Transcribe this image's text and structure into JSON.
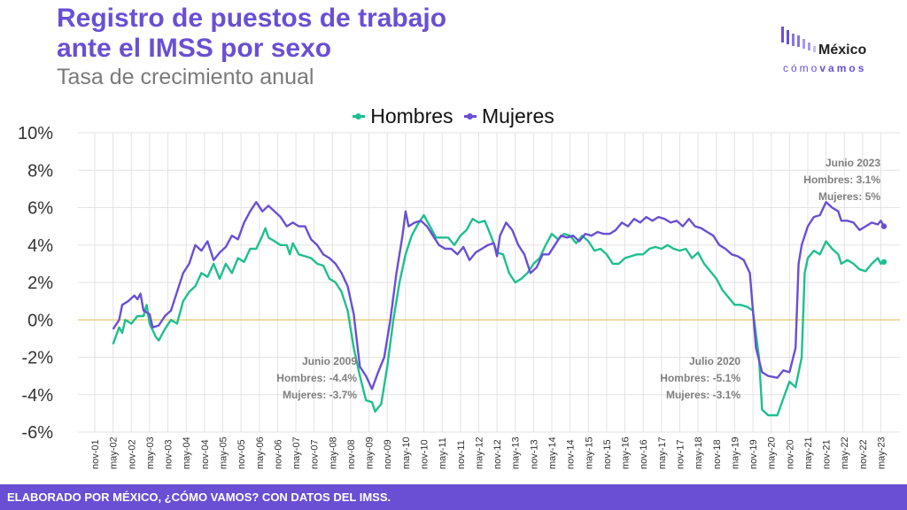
{
  "header": {
    "title_line1": "Registro de puestos de trabajo",
    "title_line2": "ante el IMSS por sexo",
    "subtitle": "Tasa de crecimiento anual"
  },
  "logo": {
    "name": "México",
    "tagline_light": "cómo",
    "tagline_bold": "vamos"
  },
  "footer": {
    "text": "ELABORADO POR MÉXICO, ¿CÓMO VAMOS? CON DATOS DEL IMSS."
  },
  "colors": {
    "hombres": "#1fbf8f",
    "mujeres": "#6a4fd4",
    "zero_line": "#e8c86a",
    "grid": "#e3e3e3",
    "brand": "#6a4fd4"
  },
  "chart_data": {
    "type": "line",
    "title": "Registro de puestos de trabajo ante el IMSS por sexo",
    "subtitle": "Tasa de crecimiento anual",
    "ylim": [
      -6,
      10
    ],
    "yticks": [
      -6,
      -4,
      -2,
      0,
      2,
      4,
      6,
      8,
      10
    ],
    "ytick_labels": [
      "-6%",
      "-4%",
      "-2%",
      "0%",
      "2%",
      "4%",
      "6%",
      "8%",
      "10%"
    ],
    "xtick_labels": [
      "nov-01",
      "may-02",
      "nov-02",
      "may-03",
      "nov-03",
      "may-04",
      "nov-04",
      "may-05",
      "nov-05",
      "may-06",
      "nov-06",
      "may-07",
      "nov-07",
      "may-08",
      "nov-08",
      "may-09",
      "nov-09",
      "may-10",
      "nov-10",
      "may-11",
      "nov-11",
      "may-12",
      "nov-12",
      "may-13",
      "nov-13",
      "may-14",
      "nov-14",
      "may-15",
      "nov-15",
      "may-16",
      "nov-16",
      "may-17",
      "nov-17",
      "may-18",
      "nov-18",
      "may-19",
      "nov-19",
      "may-20",
      "nov-20",
      "may-21",
      "nov-21",
      "may-22",
      "nov-22",
      "may-23"
    ],
    "legend_position": "top-center",
    "grid": true,
    "series": [
      {
        "name": "Hombres",
        "color": "#1fbf8f",
        "points": [
          [
            "may-02",
            -1.3
          ],
          [
            "jul-02",
            -0.4
          ],
          [
            "ago-02",
            -0.7
          ],
          [
            "sep-02",
            0.0
          ],
          [
            "nov-02",
            -0.2
          ],
          [
            "ene-03",
            0.2
          ],
          [
            "mar-03",
            0.2
          ],
          [
            "abr-03",
            0.8
          ],
          [
            "may-03",
            -0.2
          ],
          [
            "jul-03",
            -0.9
          ],
          [
            "ago-03",
            -1.1
          ],
          [
            "oct-03",
            -0.5
          ],
          [
            "dic-03",
            0.0
          ],
          [
            "feb-04",
            -0.2
          ],
          [
            "abr-04",
            1.0
          ],
          [
            "jun-04",
            1.5
          ],
          [
            "ago-04",
            1.8
          ],
          [
            "oct-04",
            2.5
          ],
          [
            "dic-04",
            2.3
          ],
          [
            "feb-05",
            3.0
          ],
          [
            "abr-05",
            2.2
          ],
          [
            "jun-05",
            3.0
          ],
          [
            "ago-05",
            2.5
          ],
          [
            "oct-05",
            3.3
          ],
          [
            "dic-05",
            3.1
          ],
          [
            "feb-06",
            3.8
          ],
          [
            "abr-06",
            3.8
          ],
          [
            "jun-06",
            4.5
          ],
          [
            "jul-06",
            4.9
          ],
          [
            "ago-06",
            4.4
          ],
          [
            "oct-06",
            4.2
          ],
          [
            "dic-06",
            4.0
          ],
          [
            "feb-07",
            4.0
          ],
          [
            "mar-07",
            3.5
          ],
          [
            "abr-07",
            4.1
          ],
          [
            "jun-07",
            3.5
          ],
          [
            "ago-07",
            3.4
          ],
          [
            "oct-07",
            3.3
          ],
          [
            "dic-07",
            3.0
          ],
          [
            "feb-08",
            2.9
          ],
          [
            "abr-08",
            2.2
          ],
          [
            "jun-08",
            2.0
          ],
          [
            "ago-08",
            1.5
          ],
          [
            "oct-08",
            0.5
          ],
          [
            "dic-08",
            -1.5
          ],
          [
            "feb-09",
            -3.0
          ],
          [
            "abr-09",
            -4.3
          ],
          [
            "jun-09",
            -4.4
          ],
          [
            "jul-09",
            -4.9
          ],
          [
            "sep-09",
            -4.5
          ],
          [
            "nov-09",
            -2.5
          ],
          [
            "ene-10",
            0.0
          ],
          [
            "mar-10",
            2.0
          ],
          [
            "may-10",
            3.5
          ],
          [
            "jul-10",
            4.5
          ],
          [
            "sep-10",
            5.1
          ],
          [
            "nov-10",
            5.6
          ],
          [
            "ene-11",
            5.0
          ],
          [
            "mar-11",
            4.4
          ],
          [
            "may-11",
            4.4
          ],
          [
            "jul-11",
            4.4
          ],
          [
            "sep-11",
            4.0
          ],
          [
            "nov-11",
            4.5
          ],
          [
            "ene-12",
            4.8
          ],
          [
            "mar-12",
            5.4
          ],
          [
            "may-12",
            5.2
          ],
          [
            "jul-12",
            5.3
          ],
          [
            "sep-12",
            4.5
          ],
          [
            "nov-12",
            3.6
          ],
          [
            "ene-13",
            3.5
          ],
          [
            "mar-13",
            2.5
          ],
          [
            "may-13",
            2.0
          ],
          [
            "jul-13",
            2.2
          ],
          [
            "sep-13",
            2.5
          ],
          [
            "nov-13",
            3.0
          ],
          [
            "ene-14",
            3.3
          ],
          [
            "mar-14",
            4.0
          ],
          [
            "may-14",
            4.6
          ],
          [
            "jul-14",
            4.3
          ],
          [
            "sep-14",
            4.6
          ],
          [
            "nov-14",
            4.5
          ],
          [
            "ene-15",
            4.1
          ],
          [
            "mar-15",
            4.5
          ],
          [
            "may-15",
            4.2
          ],
          [
            "jul-15",
            3.7
          ],
          [
            "sep-15",
            3.8
          ],
          [
            "nov-15",
            3.5
          ],
          [
            "ene-16",
            3.0
          ],
          [
            "mar-16",
            3.0
          ],
          [
            "may-16",
            3.3
          ],
          [
            "jul-16",
            3.4
          ],
          [
            "sep-16",
            3.5
          ],
          [
            "nov-16",
            3.5
          ],
          [
            "ene-17",
            3.8
          ],
          [
            "mar-17",
            3.9
          ],
          [
            "may-17",
            3.8
          ],
          [
            "jul-17",
            4.0
          ],
          [
            "sep-17",
            3.8
          ],
          [
            "nov-17",
            3.7
          ],
          [
            "ene-18",
            3.8
          ],
          [
            "mar-18",
            3.3
          ],
          [
            "may-18",
            3.6
          ],
          [
            "jul-18",
            3.0
          ],
          [
            "sep-18",
            2.6
          ],
          [
            "nov-18",
            2.2
          ],
          [
            "ene-19",
            1.6
          ],
          [
            "mar-19",
            1.2
          ],
          [
            "may-19",
            0.8
          ],
          [
            "jul-19",
            0.8
          ],
          [
            "sep-19",
            0.7
          ],
          [
            "nov-19",
            0.5
          ],
          [
            "ene-20",
            -2.0
          ],
          [
            "feb-20",
            -4.8
          ],
          [
            "abr-20",
            -5.1
          ],
          [
            "jul-20",
            -5.1
          ],
          [
            "sep-20",
            -4.2
          ],
          [
            "nov-20",
            -3.3
          ],
          [
            "ene-21",
            -3.6
          ],
          [
            "mar-21",
            -2.0
          ],
          [
            "abr-21",
            2.5
          ],
          [
            "may-21",
            3.3
          ],
          [
            "jul-21",
            3.7
          ],
          [
            "sep-21",
            3.5
          ],
          [
            "nov-21",
            4.2
          ],
          [
            "ene-22",
            3.8
          ],
          [
            "mar-22",
            3.5
          ],
          [
            "abr-22",
            3.0
          ],
          [
            "jun-22",
            3.2
          ],
          [
            "ago-22",
            3.0
          ],
          [
            "oct-22",
            2.7
          ],
          [
            "dic-22",
            2.6
          ],
          [
            "feb-23",
            3.0
          ],
          [
            "abr-23",
            3.3
          ],
          [
            "may-23",
            3.0
          ],
          [
            "jun-23",
            3.1
          ]
        ]
      },
      {
        "name": "Mujeres",
        "color": "#6a4fd4",
        "points": [
          [
            "may-02",
            -0.5
          ],
          [
            "jul-02",
            0.0
          ],
          [
            "ago-02",
            0.8
          ],
          [
            "oct-02",
            1.0
          ],
          [
            "dic-02",
            1.3
          ],
          [
            "ene-03",
            1.1
          ],
          [
            "feb-03",
            1.4
          ],
          [
            "mar-03",
            0.5
          ],
          [
            "may-03",
            0.3
          ],
          [
            "jun-03",
            -0.4
          ],
          [
            "ago-03",
            -0.3
          ],
          [
            "oct-03",
            0.2
          ],
          [
            "dic-03",
            0.5
          ],
          [
            "feb-04",
            1.5
          ],
          [
            "abr-04",
            2.5
          ],
          [
            "jun-04",
            3.0
          ],
          [
            "ago-04",
            4.0
          ],
          [
            "oct-04",
            3.7
          ],
          [
            "dic-04",
            4.2
          ],
          [
            "feb-05",
            3.2
          ],
          [
            "abr-05",
            3.6
          ],
          [
            "jun-05",
            3.9
          ],
          [
            "ago-05",
            4.5
          ],
          [
            "oct-05",
            4.3
          ],
          [
            "dic-05",
            5.2
          ],
          [
            "feb-06",
            5.8
          ],
          [
            "abr-06",
            6.3
          ],
          [
            "jun-06",
            5.8
          ],
          [
            "ago-06",
            6.1
          ],
          [
            "oct-06",
            5.8
          ],
          [
            "dic-06",
            5.5
          ],
          [
            "feb-07",
            5.0
          ],
          [
            "abr-07",
            5.2
          ],
          [
            "jun-07",
            5.0
          ],
          [
            "ago-07",
            5.0
          ],
          [
            "oct-07",
            4.3
          ],
          [
            "dic-07",
            4.0
          ],
          [
            "feb-08",
            3.5
          ],
          [
            "abr-08",
            3.3
          ],
          [
            "jun-08",
            3.0
          ],
          [
            "ago-08",
            2.5
          ],
          [
            "oct-08",
            1.8
          ],
          [
            "dic-08",
            0.3
          ],
          [
            "feb-09",
            -2.5
          ],
          [
            "abr-09",
            -3.0
          ],
          [
            "jun-09",
            -3.7
          ],
          [
            "ago-09",
            -2.8
          ],
          [
            "oct-09",
            -2.0
          ],
          [
            "dic-09",
            0.0
          ],
          [
            "feb-10",
            2.5
          ],
          [
            "abr-10",
            4.5
          ],
          [
            "may-10",
            5.8
          ],
          [
            "jun-10",
            5.0
          ],
          [
            "ago-10",
            5.2
          ],
          [
            "oct-10",
            5.3
          ],
          [
            "dic-10",
            5.0
          ],
          [
            "feb-11",
            4.5
          ],
          [
            "abr-11",
            4.0
          ],
          [
            "jun-11",
            3.8
          ],
          [
            "ago-11",
            3.8
          ],
          [
            "oct-11",
            3.5
          ],
          [
            "dic-11",
            3.9
          ],
          [
            "feb-12",
            3.2
          ],
          [
            "abr-12",
            3.6
          ],
          [
            "jun-12",
            3.8
          ],
          [
            "ago-12",
            4.0
          ],
          [
            "oct-12",
            4.1
          ],
          [
            "nov-12",
            3.4
          ],
          [
            "dic-12",
            4.5
          ],
          [
            "feb-13",
            5.2
          ],
          [
            "abr-13",
            4.8
          ],
          [
            "jun-13",
            4.0
          ],
          [
            "ago-13",
            3.5
          ],
          [
            "oct-13",
            2.5
          ],
          [
            "dic-13",
            2.8
          ],
          [
            "feb-14",
            3.5
          ],
          [
            "abr-14",
            3.5
          ],
          [
            "jun-14",
            4.0
          ],
          [
            "ago-14",
            4.5
          ],
          [
            "oct-14",
            4.4
          ],
          [
            "dic-14",
            4.5
          ],
          [
            "feb-15",
            4.2
          ],
          [
            "abr-15",
            4.6
          ],
          [
            "jun-15",
            4.5
          ],
          [
            "ago-15",
            4.7
          ],
          [
            "oct-15",
            4.6
          ],
          [
            "dic-15",
            4.6
          ],
          [
            "feb-16",
            4.8
          ],
          [
            "abr-16",
            5.2
          ],
          [
            "jun-16",
            5.0
          ],
          [
            "ago-16",
            5.4
          ],
          [
            "oct-16",
            5.2
          ],
          [
            "dic-16",
            5.5
          ],
          [
            "feb-17",
            5.3
          ],
          [
            "abr-17",
            5.5
          ],
          [
            "jun-17",
            5.4
          ],
          [
            "ago-17",
            5.2
          ],
          [
            "oct-17",
            5.3
          ],
          [
            "dic-17",
            5.0
          ],
          [
            "feb-18",
            5.4
          ],
          [
            "abr-18",
            5.0
          ],
          [
            "jun-18",
            4.9
          ],
          [
            "ago-18",
            4.7
          ],
          [
            "oct-18",
            4.5
          ],
          [
            "dic-18",
            4.0
          ],
          [
            "feb-19",
            3.8
          ],
          [
            "abr-19",
            3.5
          ],
          [
            "jun-19",
            3.4
          ],
          [
            "ago-19",
            3.2
          ],
          [
            "oct-19",
            2.5
          ],
          [
            "dic-19",
            -1.5
          ],
          [
            "feb-20",
            -2.8
          ],
          [
            "abr-20",
            -3.0
          ],
          [
            "jul-20",
            -3.1
          ],
          [
            "sep-20",
            -2.7
          ],
          [
            "nov-20",
            -2.8
          ],
          [
            "ene-21",
            -1.5
          ],
          [
            "feb-21",
            3.0
          ],
          [
            "mar-21",
            4.0
          ],
          [
            "may-21",
            5.0
          ],
          [
            "jul-21",
            5.5
          ],
          [
            "sep-21",
            5.6
          ],
          [
            "nov-21",
            6.3
          ],
          [
            "ene-22",
            6.0
          ],
          [
            "mar-22",
            5.8
          ],
          [
            "abr-22",
            5.3
          ],
          [
            "jun-22",
            5.3
          ],
          [
            "ago-22",
            5.2
          ],
          [
            "oct-22",
            4.8
          ],
          [
            "dic-22",
            5.0
          ],
          [
            "feb-23",
            5.2
          ],
          [
            "abr-23",
            5.1
          ],
          [
            "may-23",
            5.3
          ],
          [
            "jun-23",
            5.0
          ]
        ]
      }
    ],
    "annotations": [
      {
        "lines": [
          "Junio 2009",
          "Hombres: -4.4%",
          "Mujeres: -3.7%"
        ]
      },
      {
        "lines": [
          "Julio 2020",
          "Hombres: -5.1%",
          "Mujeres: -3.1%"
        ]
      },
      {
        "lines": [
          "Junio 2023",
          "Hombres: 3.1%",
          "Mujeres: 5%"
        ]
      }
    ]
  }
}
